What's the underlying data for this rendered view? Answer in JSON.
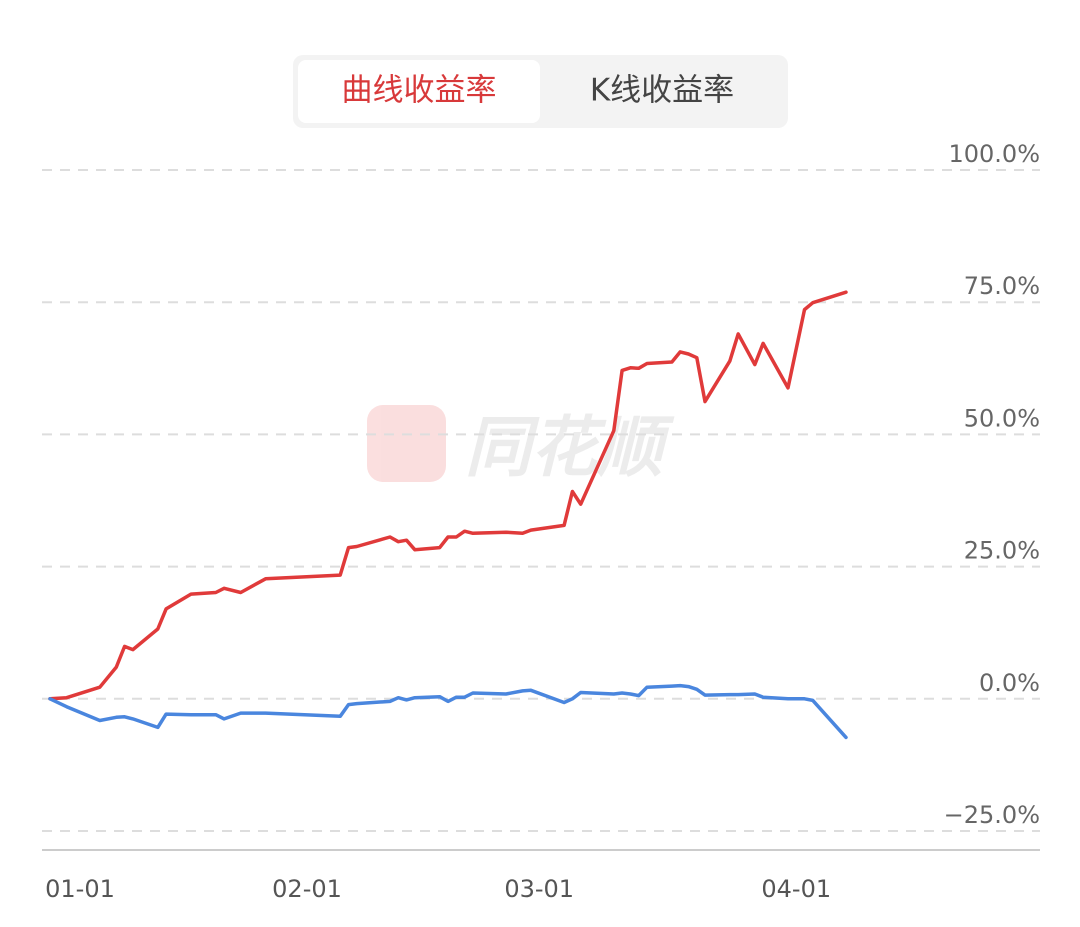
{
  "tabs": [
    "曲线收益率",
    "K线收益率"
  ],
  "watermark": "同花顺",
  "chart_data": {
    "type": "line",
    "x": [
      "01-01",
      "01-03",
      "01-07",
      "01-09",
      "01-10",
      "01-11",
      "01-14",
      "01-15",
      "01-18",
      "01-21",
      "01-22",
      "01-24",
      "01-27",
      "02-05",
      "02-06",
      "02-07",
      "02-11",
      "02-12",
      "02-13",
      "02-14",
      "02-17",
      "02-18",
      "02-19",
      "02-20",
      "02-21",
      "02-25",
      "02-27",
      "02-28",
      "03-04",
      "03-05",
      "03-06",
      "03-10",
      "03-11",
      "03-12",
      "03-13",
      "03-14",
      "03-17",
      "03-18",
      "03-19",
      "03-20",
      "03-21",
      "03-24",
      "03-25",
      "03-27",
      "03-28",
      "03-31",
      "04-02",
      "04-03",
      "04-07"
    ],
    "series": [
      {
        "color": "#e03a3a",
        "values": [
          0,
          0.2,
          2.2,
          6.0,
          9.9,
          9.3,
          13.2,
          17.0,
          19.8,
          20.1,
          20.9,
          20.1,
          22.7,
          23.4,
          28.6,
          28.8,
          30.6,
          29.7,
          30.0,
          28.2,
          28.6,
          30.6,
          30.6,
          31.7,
          31.3,
          31.5,
          31.3,
          31.9,
          32.8,
          39.2,
          36.8,
          50.7,
          62.1,
          62.6,
          62.5,
          63.4,
          63.7,
          65.6,
          65.2,
          64.5,
          56.2,
          63.9,
          69.0,
          63.2,
          67.2,
          58.8,
          73.6,
          74.9,
          76.9
        ]
      },
      {
        "color": "#4a86de",
        "values": [
          0,
          -1.5,
          -4.1,
          -3.5,
          -3.4,
          -3.8,
          -5.4,
          -2.9,
          -3.0,
          -3.0,
          -3.8,
          -2.7,
          -2.7,
          -3.3,
          -1.1,
          -0.9,
          -0.5,
          0.2,
          -0.2,
          0.2,
          0.4,
          -0.5,
          0.3,
          0.3,
          1.1,
          0.9,
          1.5,
          1.6,
          -0.7,
          0.0,
          1.2,
          0.9,
          1.1,
          0.9,
          0.6,
          2.2,
          2.4,
          2.5,
          2.3,
          1.8,
          0.7,
          0.8,
          0.8,
          0.9,
          0.3,
          0.0,
          0.0,
          -0.3,
          -7.3
        ]
      }
    ],
    "ylim": [
      -25,
      100
    ],
    "yticks": [
      {
        "value": -25,
        "label": "−25.0%"
      },
      {
        "value": 0,
        "label": "0.0%"
      },
      {
        "value": 25,
        "label": "25.0%"
      },
      {
        "value": 50,
        "label": "50.0%"
      },
      {
        "value": 75,
        "label": "75.0%"
      },
      {
        "value": 100,
        "label": "100.0%"
      }
    ],
    "xticks": [
      "01-01",
      "02-01",
      "03-01",
      "04-01"
    ],
    "grid": true
  }
}
